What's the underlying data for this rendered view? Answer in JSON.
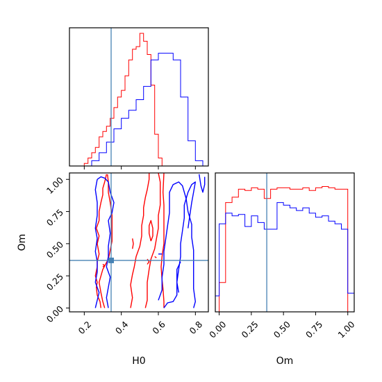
{
  "chart_data": {
    "type": "corner",
    "parameters": [
      "H0",
      "Om"
    ],
    "axis_labels": {
      "x_left": "H0",
      "x_right": "Om",
      "y_left": "Om"
    },
    "ranges": {
      "H0": [
        0.12,
        0.87
      ],
      "Om": [
        -0.03,
        1.05
      ]
    },
    "ticks": {
      "H0": {
        "values": [
          0.2,
          0.4,
          0.6,
          0.8
        ],
        "labels": [
          "0.2",
          "0.4",
          "0.6",
          "0.8"
        ]
      },
      "Om": {
        "values": [
          0.0,
          0.25,
          0.5,
          0.75,
          1.0
        ],
        "labels": [
          "0.00",
          "0.25",
          "0.50",
          "0.75",
          "1.00"
        ]
      }
    },
    "truth": {
      "H0": 0.345,
      "Om": 0.37
    },
    "series": [
      {
        "color": "#ff0000"
      },
      {
        "color": "#0000ff"
      }
    ],
    "truth_color": "#4682b4",
    "hist_H0": {
      "ymax": 1.0,
      "red": {
        "edges": [
          0.2,
          0.22,
          0.24,
          0.26,
          0.28,
          0.3,
          0.32,
          0.34,
          0.36,
          0.38,
          0.4,
          0.42,
          0.44,
          0.46,
          0.48,
          0.5,
          0.52,
          0.54,
          0.56,
          0.58,
          0.6,
          0.62,
          0.64
        ],
        "heights": [
          0.02,
          0.06,
          0.1,
          0.14,
          0.22,
          0.26,
          0.3,
          0.36,
          0.44,
          0.52,
          0.57,
          0.68,
          0.8,
          0.88,
          0.9,
          1.0,
          0.94,
          0.84,
          0.61,
          0.24,
          0.06,
          0.0
        ]
      },
      "blue": {
        "edges": [
          0.24,
          0.28,
          0.32,
          0.36,
          0.4,
          0.44,
          0.48,
          0.52,
          0.56,
          0.6,
          0.64,
          0.68,
          0.72,
          0.76,
          0.8,
          0.84
        ],
        "heights": [
          0.04,
          0.1,
          0.18,
          0.28,
          0.36,
          0.42,
          0.5,
          0.6,
          0.8,
          0.85,
          0.85,
          0.8,
          0.52,
          0.19,
          0.04
        ]
      }
    },
    "hist_Om": {
      "ymax": 1.0,
      "red": {
        "edges": [
          0.0,
          0.05,
          0.1,
          0.15,
          0.2,
          0.25,
          0.3,
          0.35,
          0.4,
          0.45,
          0.5,
          0.55,
          0.6,
          0.65,
          0.7,
          0.75,
          0.8,
          0.85,
          0.9,
          0.95,
          1.0
        ],
        "heights": [
          0.22,
          0.82,
          0.86,
          0.92,
          0.91,
          0.93,
          0.92,
          0.85,
          0.92,
          0.93,
          0.93,
          0.92,
          0.92,
          0.93,
          0.91,
          0.93,
          0.94,
          0.93,
          0.92,
          0.92
        ]
      },
      "blue": {
        "edges": [
          -0.03,
          0.0,
          0.05,
          0.1,
          0.15,
          0.2,
          0.25,
          0.3,
          0.35,
          0.4,
          0.45,
          0.5,
          0.55,
          0.6,
          0.65,
          0.7,
          0.75,
          0.8,
          0.85,
          0.9,
          0.95,
          1.0,
          1.05
        ],
        "heights": [
          0.12,
          0.66,
          0.74,
          0.72,
          0.73,
          0.64,
          0.72,
          0.67,
          0.62,
          0.62,
          0.82,
          0.8,
          0.78,
          0.76,
          0.78,
          0.74,
          0.71,
          0.72,
          0.68,
          0.66,
          0.62,
          0.14
        ]
      }
    },
    "contours": {
      "red": [
        [
          [
            0.29,
            0.0
          ],
          [
            0.285,
            0.05
          ],
          [
            0.27,
            0.1
          ],
          [
            0.265,
            0.16
          ],
          [
            0.27,
            0.2
          ],
          [
            0.26,
            0.25
          ],
          [
            0.27,
            0.32
          ],
          [
            0.27,
            0.36
          ],
          [
            0.28,
            0.42
          ],
          [
            0.27,
            0.5
          ],
          [
            0.28,
            0.56
          ],
          [
            0.265,
            0.62
          ],
          [
            0.28,
            0.68
          ],
          [
            0.28,
            0.75
          ],
          [
            0.29,
            0.82
          ],
          [
            0.3,
            0.88
          ],
          [
            0.3,
            0.93
          ],
          [
            0.31,
            0.98
          ],
          [
            0.32,
            1.04
          ]
        ],
        [
          [
            0.325,
            1.04
          ],
          [
            0.33,
            0.98
          ],
          [
            0.33,
            0.9
          ],
          [
            0.34,
            0.82
          ],
          [
            0.35,
            0.72
          ],
          [
            0.35,
            0.62
          ],
          [
            0.35,
            0.52
          ],
          [
            0.34,
            0.45
          ],
          [
            0.33,
            0.38
          ],
          [
            0.3,
            0.3
          ],
          [
            0.28,
            0.2
          ],
          [
            0.29,
            0.12
          ],
          [
            0.3,
            0.05
          ],
          [
            0.31,
            0.0
          ]
        ],
        [
          [
            0.45,
            0.0
          ],
          [
            0.46,
            0.08
          ],
          [
            0.45,
            0.18
          ],
          [
            0.46,
            0.26
          ],
          [
            0.47,
            0.32
          ],
          [
            0.48,
            0.4
          ],
          [
            0.5,
            0.48
          ],
          [
            0.51,
            0.56
          ],
          [
            0.51,
            0.64
          ],
          [
            0.52,
            0.72
          ],
          [
            0.52,
            0.78
          ],
          [
            0.53,
            0.86
          ],
          [
            0.54,
            0.92
          ],
          [
            0.55,
            1.0
          ],
          [
            0.55,
            1.05
          ]
        ],
        [
          [
            0.53,
            0.0
          ],
          [
            0.54,
            0.06
          ],
          [
            0.54,
            0.14
          ],
          [
            0.54,
            0.2
          ],
          [
            0.55,
            0.3
          ],
          [
            0.56,
            0.38
          ],
          [
            0.58,
            0.46
          ],
          [
            0.59,
            0.54
          ],
          [
            0.6,
            0.62
          ],
          [
            0.6,
            0.72
          ],
          [
            0.61,
            0.8
          ],
          [
            0.61,
            0.9
          ],
          [
            0.61,
            0.98
          ],
          [
            0.6,
            1.05
          ]
        ],
        [
          [
            0.63,
            0.0
          ],
          [
            0.63,
            0.05
          ],
          [
            0.625,
            0.15
          ],
          [
            0.62,
            0.22
          ],
          [
            0.615,
            0.32
          ],
          [
            0.62,
            0.4
          ],
          [
            0.63,
            0.5
          ],
          [
            0.63,
            0.6
          ],
          [
            0.63,
            0.7
          ],
          [
            0.63,
            0.8
          ],
          [
            0.625,
            0.9
          ],
          [
            0.63,
            1.05
          ]
        ],
        [
          [
            0.56,
            0.52
          ],
          [
            0.57,
            0.56
          ],
          [
            0.57,
            0.62
          ],
          [
            0.56,
            0.68
          ],
          [
            0.55,
            0.64
          ],
          [
            0.55,
            0.58
          ],
          [
            0.56,
            0.52
          ]
        ],
        [
          [
            0.3,
            0.34
          ],
          [
            0.31,
            0.33
          ],
          [
            0.3,
            0.32
          ]
        ],
        [
          [
            0.58,
            0.4
          ],
          [
            0.59,
            0.39
          ]
        ],
        [
          [
            0.46,
            0.46
          ],
          [
            0.465,
            0.5
          ],
          [
            0.46,
            0.54
          ]
        ],
        [
          [
            0.54,
            0.34
          ],
          [
            0.55,
            0.36
          ],
          [
            0.54,
            0.38
          ]
        ]
      ],
      "blue": [
        [
          [
            0.26,
            0.0
          ],
          [
            0.27,
            0.06
          ],
          [
            0.28,
            0.12
          ],
          [
            0.26,
            0.2
          ],
          [
            0.27,
            0.28
          ],
          [
            0.27,
            0.36
          ],
          [
            0.26,
            0.44
          ],
          [
            0.27,
            0.54
          ],
          [
            0.26,
            0.62
          ],
          [
            0.27,
            0.72
          ],
          [
            0.27,
            0.82
          ],
          [
            0.26,
            0.92
          ],
          [
            0.27,
            1.0
          ]
        ],
        [
          [
            0.27,
            1.0
          ],
          [
            0.29,
            1.02
          ],
          [
            0.31,
            1.01
          ],
          [
            0.33,
            0.98
          ],
          [
            0.34,
            0.9
          ],
          [
            0.36,
            0.82
          ],
          [
            0.35,
            0.74
          ],
          [
            0.33,
            0.68
          ],
          [
            0.34,
            0.58
          ],
          [
            0.33,
            0.48
          ],
          [
            0.33,
            0.4
          ],
          [
            0.32,
            0.32
          ],
          [
            0.34,
            0.24
          ],
          [
            0.33,
            0.16
          ],
          [
            0.32,
            0.08
          ],
          [
            0.33,
            0.0
          ]
        ],
        [
          [
            0.63,
            0.0
          ],
          [
            0.65,
            0.04
          ],
          [
            0.68,
            0.05
          ],
          [
            0.7,
            0.1
          ],
          [
            0.7,
            0.2
          ],
          [
            0.71,
            0.3
          ],
          [
            0.72,
            0.4
          ],
          [
            0.72,
            0.5
          ],
          [
            0.73,
            0.6
          ],
          [
            0.74,
            0.7
          ],
          [
            0.74,
            0.8
          ],
          [
            0.76,
            0.9
          ],
          [
            0.78,
            0.96
          ],
          [
            0.8,
            0.98
          ],
          [
            0.79,
            0.9
          ],
          [
            0.78,
            0.82
          ],
          [
            0.77,
            0.72
          ],
          [
            0.76,
            0.62
          ]
        ],
        [
          [
            0.6,
            0.06
          ],
          [
            0.62,
            0.14
          ],
          [
            0.62,
            0.24
          ],
          [
            0.63,
            0.34
          ],
          [
            0.63,
            0.44
          ],
          [
            0.64,
            0.54
          ],
          [
            0.65,
            0.64
          ],
          [
            0.66,
            0.74
          ],
          [
            0.66,
            0.84
          ],
          [
            0.66,
            0.9
          ],
          [
            0.68,
            0.96
          ],
          [
            0.71,
            0.98
          ],
          [
            0.73,
            0.95
          ],
          [
            0.75,
            0.85
          ],
          [
            0.76,
            0.75
          ],
          [
            0.78,
            0.65
          ],
          [
            0.78,
            0.55
          ],
          [
            0.79,
            0.45
          ],
          [
            0.79,
            0.35
          ],
          [
            0.79,
            0.25
          ],
          [
            0.79,
            0.15
          ],
          [
            0.8,
            0.05
          ],
          [
            0.79,
            0.0
          ]
        ],
        [
          [
            0.72,
            0.36
          ],
          [
            0.7,
            0.3
          ],
          [
            0.7,
            0.2
          ],
          [
            0.71,
            0.12
          ]
        ],
        [
          [
            0.82,
            1.04
          ],
          [
            0.83,
            0.95
          ],
          [
            0.84,
            0.9
          ],
          [
            0.85,
            0.96
          ],
          [
            0.85,
            1.02
          ]
        ],
        [
          [
            0.6,
            0.42
          ],
          [
            0.62,
            0.42
          ]
        ]
      ]
    }
  }
}
